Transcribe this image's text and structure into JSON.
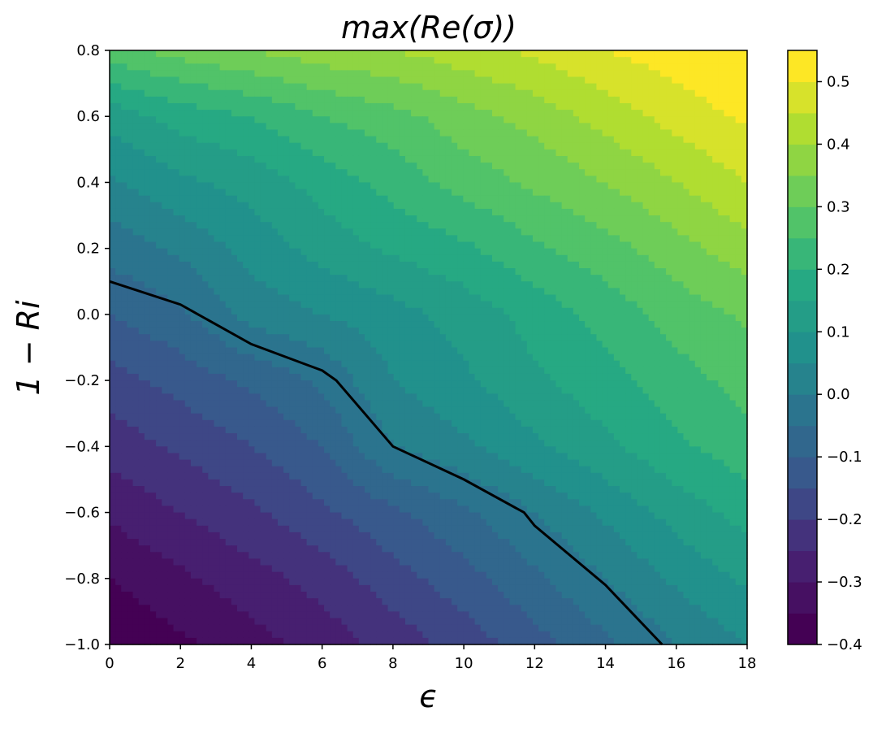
{
  "chart_data": {
    "type": "contour",
    "title": "max(Re(σ))",
    "xlabel": "ϵ",
    "ylabel": "1 − Ri",
    "xlim": [
      0,
      18
    ],
    "ylim": [
      -1.0,
      0.8
    ],
    "x_ticks": [
      0,
      2,
      4,
      6,
      8,
      10,
      12,
      14,
      16,
      18
    ],
    "x_tick_labels": [
      "0",
      "2",
      "4",
      "6",
      "8",
      "10",
      "12",
      "14",
      "16",
      "18"
    ],
    "y_ticks": [
      -1.0,
      -0.8,
      -0.6,
      -0.4,
      -0.2,
      0.0,
      0.2,
      0.4,
      0.6,
      0.8
    ],
    "y_tick_labels": [
      "−1.0",
      "−0.8",
      "−0.6",
      "−0.4",
      "−0.2",
      "0.0",
      "0.2",
      "0.4",
      "0.6",
      "0.8"
    ],
    "x": [
      0,
      2,
      4,
      6,
      8,
      10,
      12,
      14,
      16,
      18
    ],
    "y": [
      -1.0,
      -0.8,
      -0.6,
      -0.4,
      -0.2,
      0.0,
      0.2,
      0.4,
      0.6,
      0.8
    ],
    "z": [
      [
        -0.4,
        -0.36,
        -0.32,
        -0.28,
        -0.23,
        -0.18,
        -0.12,
        -0.06,
        0.0,
        0.05
      ],
      [
        -0.35,
        -0.31,
        -0.27,
        -0.23,
        -0.17,
        -0.12,
        -0.06,
        0.0,
        0.06,
        0.11
      ],
      [
        -0.29,
        -0.25,
        -0.21,
        -0.16,
        -0.11,
        -0.06,
        0.0,
        0.06,
        0.12,
        0.17
      ],
      [
        -0.23,
        -0.19,
        -0.15,
        -0.1,
        0.0,
        0.04,
        0.09,
        0.14,
        0.19,
        0.23
      ],
      [
        -0.17,
        -0.13,
        -0.09,
        -0.04,
        0.05,
        0.09,
        0.14,
        0.18,
        0.23,
        0.27
      ],
      [
        -0.1,
        -0.06,
        0.02,
        0.05,
        0.08,
        0.12,
        0.17,
        0.22,
        0.27,
        0.31
      ],
      [
        -0.03,
        0.01,
        0.07,
        0.12,
        0.16,
        0.19,
        0.24,
        0.28,
        0.33,
        0.38
      ],
      [
        0.04,
        0.09,
        0.12,
        0.17,
        0.22,
        0.27,
        0.31,
        0.35,
        0.4,
        0.45
      ],
      [
        0.12,
        0.17,
        0.2,
        0.25,
        0.28,
        0.33,
        0.37,
        0.42,
        0.47,
        0.51
      ],
      [
        0.28,
        0.32,
        0.35,
        0.38,
        0.4,
        0.43,
        0.46,
        0.5,
        0.53,
        0.56
      ]
    ],
    "levels": [
      -0.4,
      -0.35,
      -0.3,
      -0.25,
      -0.2,
      -0.15,
      -0.1,
      -0.05,
      0.0,
      0.05,
      0.1,
      0.15,
      0.2,
      0.25,
      0.3,
      0.35,
      0.4,
      0.45,
      0.5,
      0.55
    ],
    "zero_contour": {
      "x": [
        0,
        2,
        2.5,
        4,
        6,
        6.4,
        8,
        10,
        11.7,
        12,
        14,
        15.6
      ],
      "y": [
        0.1,
        0.03,
        0.0,
        -0.09,
        -0.17,
        -0.2,
        -0.4,
        -0.5,
        -0.6,
        -0.64,
        -0.82,
        -1.0
      ]
    },
    "colormap": "viridis",
    "colorbar": {
      "ticks": [
        -0.4,
        -0.3,
        -0.2,
        -0.1,
        0.0,
        0.1,
        0.2,
        0.3,
        0.4,
        0.5
      ],
      "tick_labels": [
        "−0.4",
        "−0.3",
        "−0.2",
        "−0.1",
        "0.0",
        "0.1",
        "0.2",
        "0.3",
        "0.4",
        "0.5"
      ],
      "range": [
        -0.4,
        0.55
      ]
    },
    "grid": false,
    "legend": "none"
  }
}
